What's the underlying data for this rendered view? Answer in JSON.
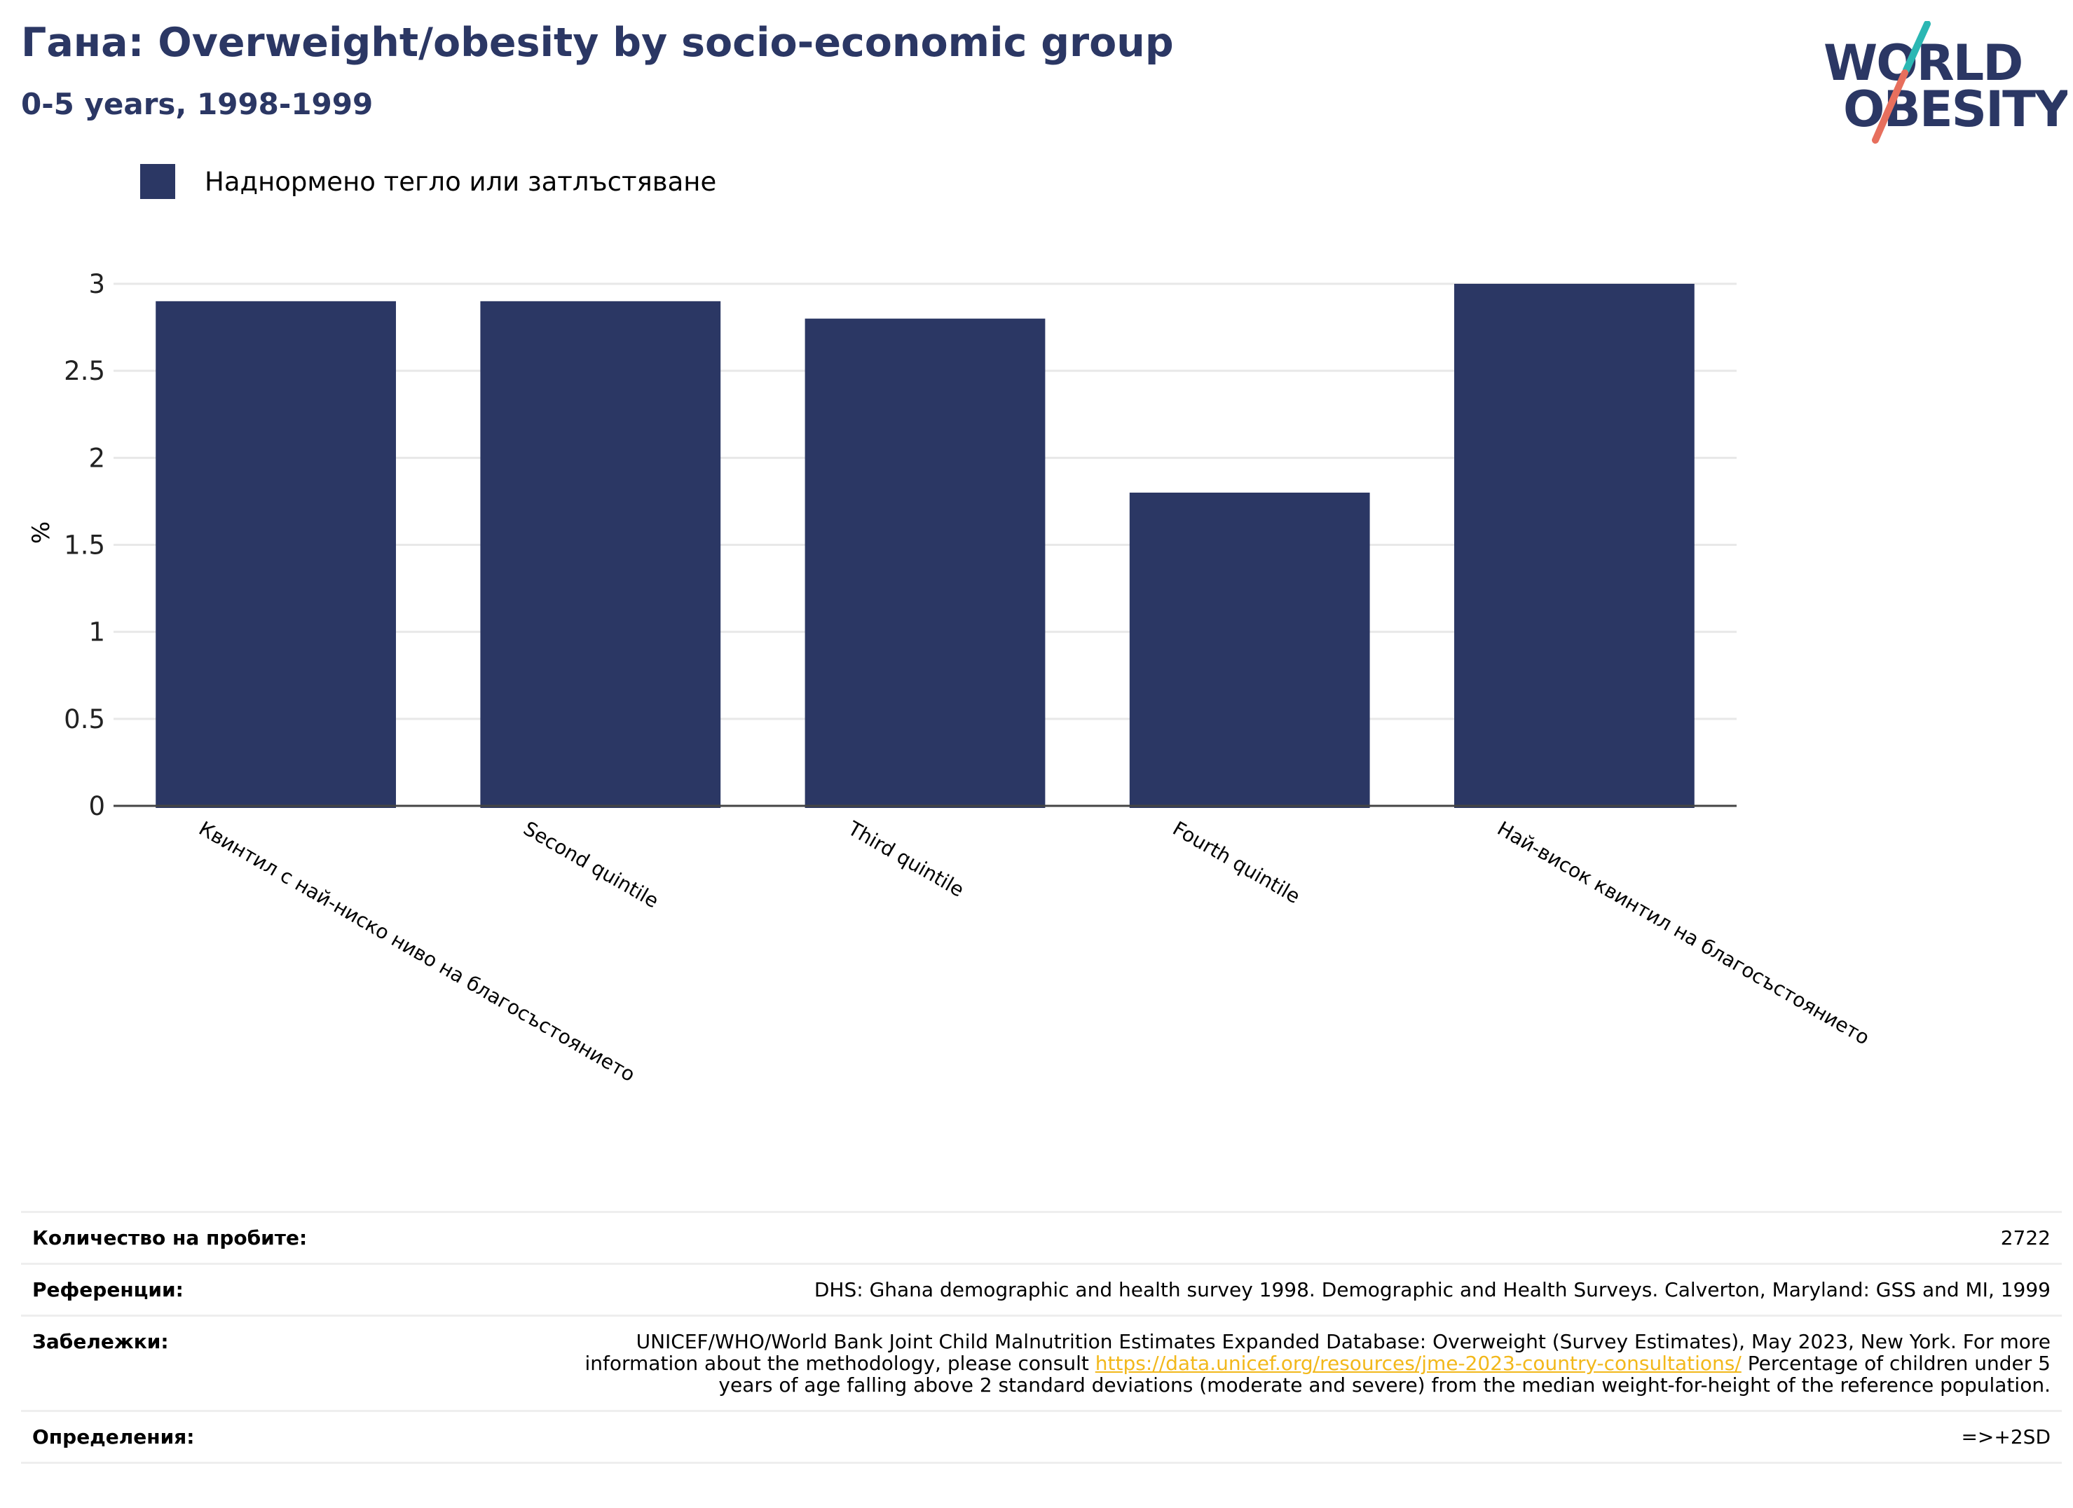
{
  "title": "Гана: Overweight/obesity by socio-economic group",
  "subtitle": "0-5 years, 1998-1999",
  "logo": {
    "line1": "WORLD",
    "line2": "OBESITY",
    "color_text": "#2b3764",
    "color_slash_top": "#2bb7b3",
    "color_slash_bottom": "#e76f5d"
  },
  "legend": {
    "label": "Наднормено тегло или затлъстяване",
    "color": "#2b3764"
  },
  "chart_data": {
    "type": "bar",
    "categories": [
      "Квинтил с най-ниско ниво на благосъстоянието",
      "Second quintile",
      "Third quintile",
      "Fourth quintile",
      "Най-висок квинтил на благосъстоянието"
    ],
    "series": [
      {
        "name": "Наднормено тегло или затлъстяване",
        "values": [
          2.9,
          2.9,
          2.8,
          1.8,
          3.0
        ],
        "color": "#2b3764"
      }
    ],
    "ylabel": "%",
    "ylim": [
      0,
      3
    ],
    "yticks": [
      0,
      0.5,
      1,
      1.5,
      2,
      2.5,
      3
    ],
    "ytick_labels": [
      "0",
      "0.5",
      "1",
      "1.5",
      "2",
      "2.5",
      "3"
    ],
    "grid": true,
    "legend_position": "top-left"
  },
  "info": {
    "sample_label": "Количество на пробите:",
    "sample_value": "2722",
    "references_label": "Референции:",
    "references_value": "DHS: Ghana demographic and health survey 1998. Demographic and Health Surveys. Calverton, Maryland: GSS and MI, 1999",
    "notes_label": "Забележки:",
    "notes_before": "UNICEF/WHO/World Bank Joint Child Malnutrition Estimates Expanded Database: Overweight (Survey Estimates), May 2023, New York. For more information about the methodology, please consult ",
    "notes_link": "https://data.unicef.org/resources/jme-2023-country-consultations/",
    "notes_after": " Percentage of children under 5 years of age falling above 2 standard deviations (moderate and severe) from the median weight-for-height of the reference population.",
    "definitions_label": "Определения:",
    "definitions_value": "=>+2SD"
  }
}
